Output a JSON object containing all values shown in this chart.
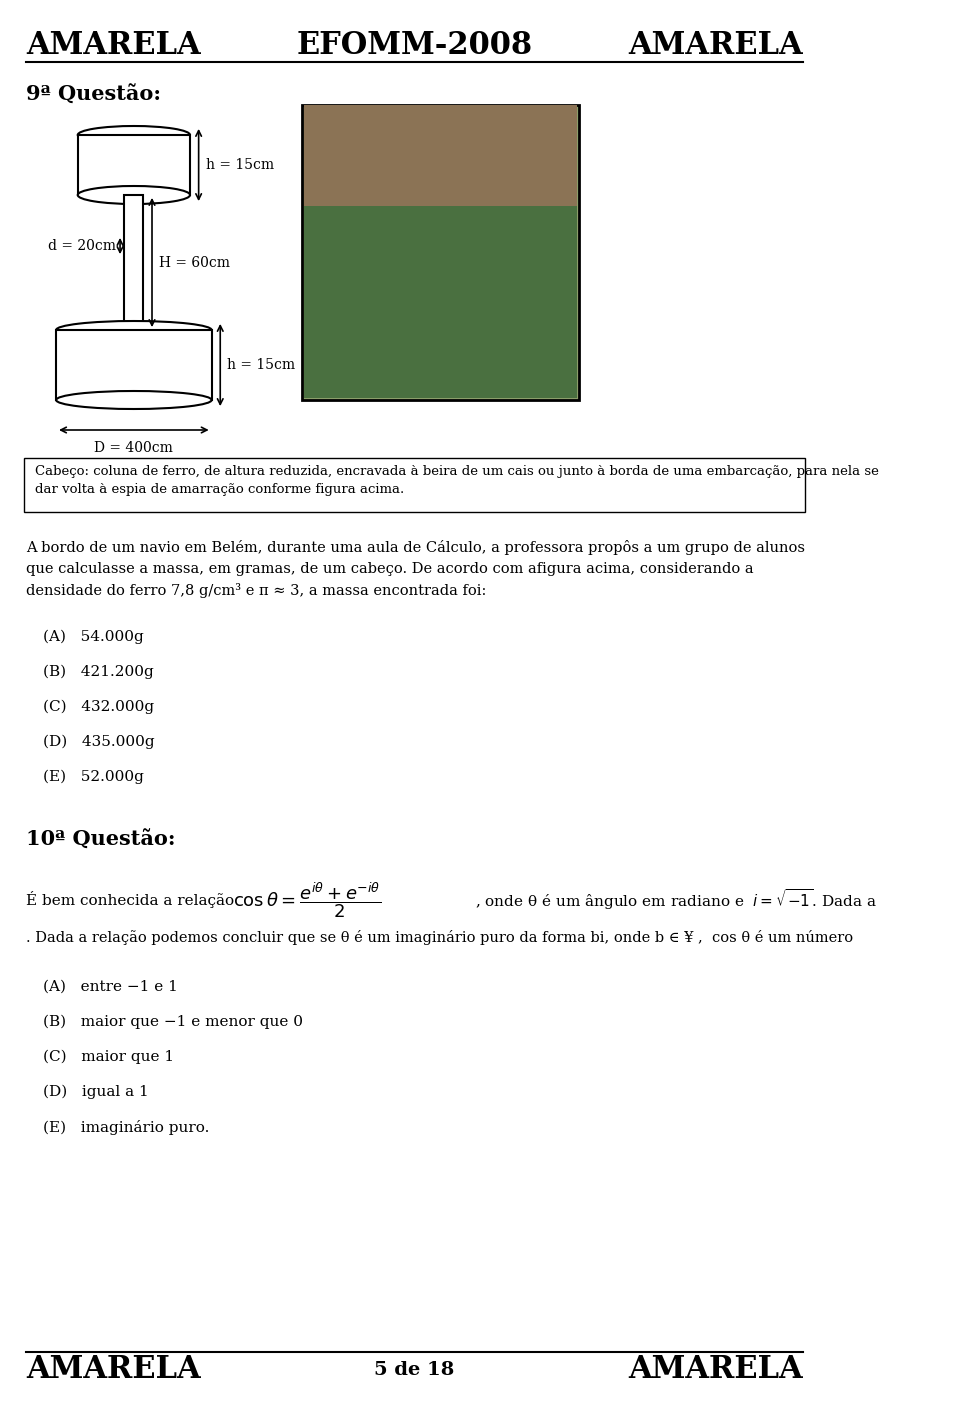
{
  "header_left": "AMARELA",
  "header_center": "EFOMM-2008",
  "header_right": "AMARELA",
  "footer_left": "AMARELA",
  "footer_center": "5 de 18",
  "footer_right": "AMARELA",
  "q9_title": "9ª Questão:",
  "q9_diagram_labels": {
    "h_top": "h = 15cm",
    "d": "d = 20cm",
    "H": "H = 60cm",
    "h_bot": "h = 15cm",
    "D": "D = 400cm"
  },
  "q9_caption": "Cabeço: coluna de ferro, de altura reduzida, encravada à beira de um cais ou junto à borda de uma embarcação, para nela se\ndar volta à espia de amarração conforme figura acima.",
  "q9_text": "A bordo de um navio em Belém, durante uma aula de Cálculo, a professora propôs a um grupo de alunos\nque calculasse a massa, em gramas, de um cabeço. De acordo com afigura acima, considerando a\ndensidade do ferro 7,8 g/cm³ e π ≈ 3, a massa encontrada foi:",
  "q9_options": [
    "(A)   54.000g",
    "(B)   421.200g",
    "(C)   432.000g",
    "(D)   435.000g",
    "(E)   52.000g"
  ],
  "q10_title": "10ª Questão:",
  "q10_text_before": "É bem conhecida a relação",
  "q10_formula": "cosθ = (e^{iθ} + e^{-iθ}) / 2",
  "q10_text_after": ", onde θ é um ângulo em radiano e",
  "q10_imaginary": "i = √−1",
  "q10_text2": ". Dada a\nrelação podemos concluir que se θ é um imaginário puro da forma bi, onde b ∈ ¥ ,  cos θ é um número",
  "q10_options": [
    "(A)   entre −1 e 1",
    "(B)   maior que −1 e menor que 0",
    "(C)   maior que 1",
    "(D)   igual a 1",
    "(E)   imaginário puro."
  ],
  "bg_color": "#ffffff",
  "text_color": "#000000",
  "header_fontsize": 22,
  "body_fontsize": 11
}
